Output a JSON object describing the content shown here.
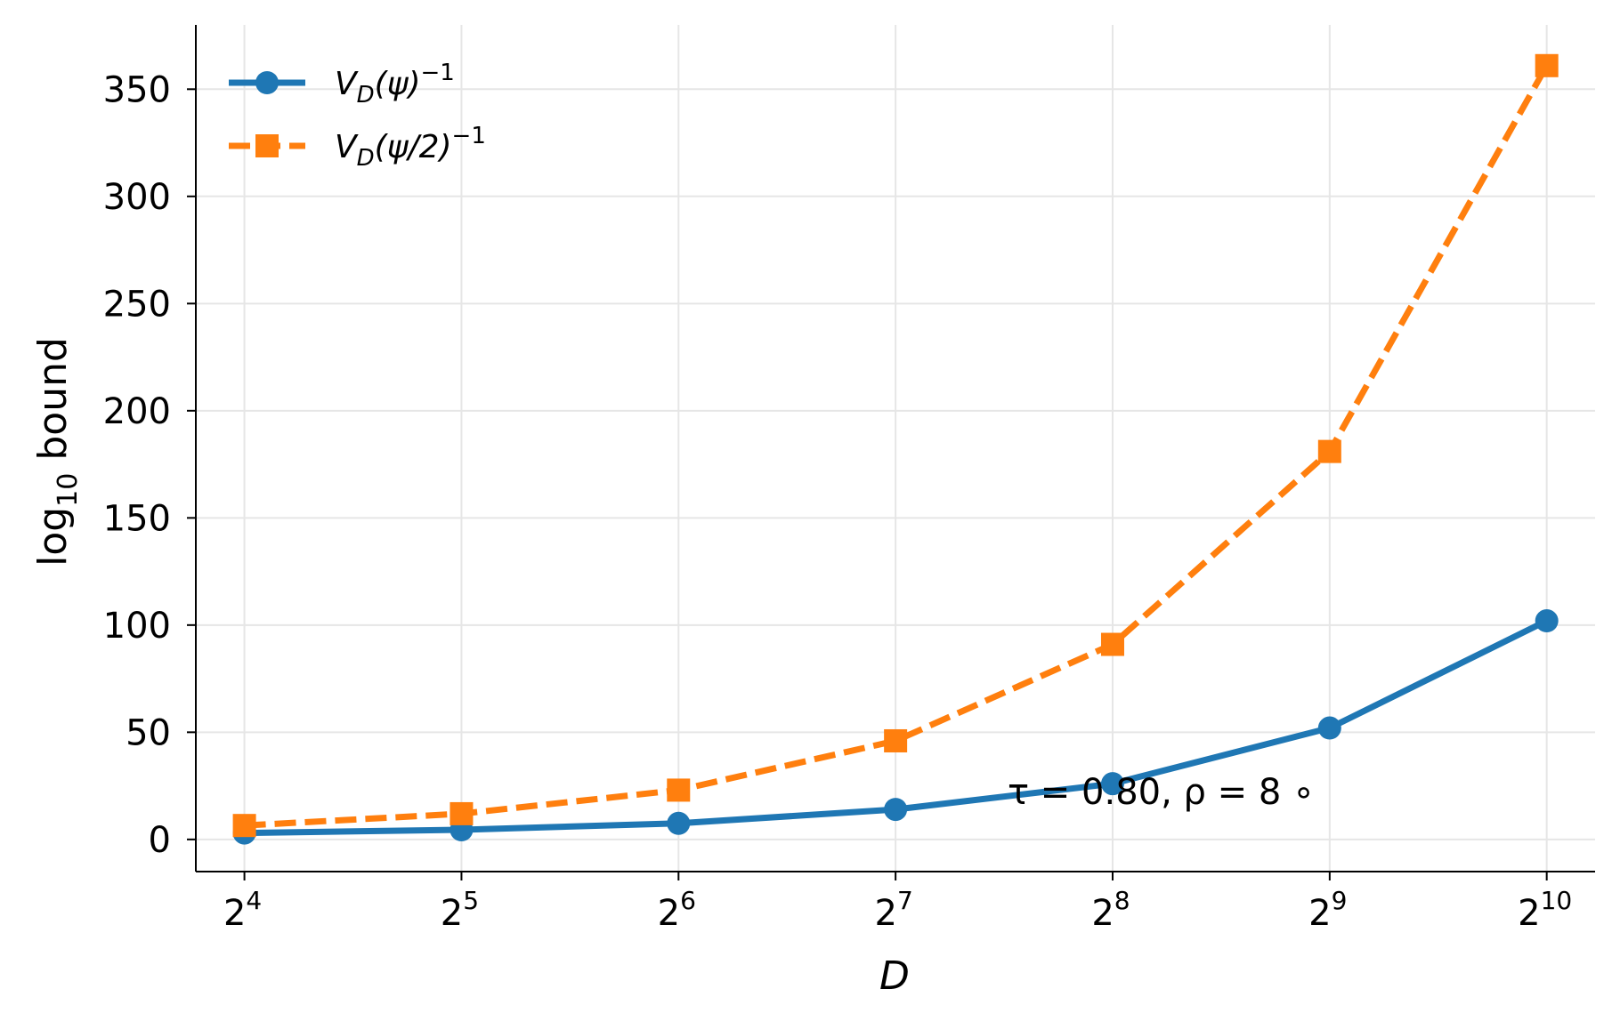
{
  "chart_data": {
    "type": "line",
    "x": [
      16,
      32,
      64,
      128,
      256,
      512,
      1024
    ],
    "x_tick_labels": [
      {
        "base": "2",
        "exp": "4"
      },
      {
        "base": "2",
        "exp": "5"
      },
      {
        "base": "2",
        "exp": "6"
      },
      {
        "base": "2",
        "exp": "7"
      },
      {
        "base": "2",
        "exp": "8"
      },
      {
        "base": "2",
        "exp": "9"
      },
      {
        "base": "2",
        "exp": "10"
      }
    ],
    "x_scale": "log2",
    "xlim": [
      13.7,
      1195
    ],
    "xlabel": "D",
    "ylabel": {
      "main": "log",
      "sub": "10",
      "rest": " bound"
    },
    "ylim": [
      -15,
      380
    ],
    "yticks": [
      0,
      50,
      100,
      150,
      200,
      250,
      300,
      350
    ],
    "grid": true,
    "legend_position": "top-left",
    "series": [
      {
        "name": {
          "v": "V",
          "sub": "D",
          "arg": "(ψ)",
          "sup": "−1"
        },
        "color": "#1f77b4",
        "linestyle": "solid",
        "marker": "circle",
        "values": [
          3,
          4.5,
          7.5,
          14,
          26,
          52,
          102
        ]
      },
      {
        "name": {
          "v": "V",
          "sub": "D",
          "arg": "(ψ/2)",
          "sup": "−1"
        },
        "color": "#ff7f0e",
        "linestyle": "dashed",
        "marker": "square",
        "values": [
          6.5,
          12,
          23,
          46,
          91,
          181,
          361
        ]
      }
    ],
    "annotation": {
      "x": 256,
      "y": 21,
      "text": "τ = 0.80,  ρ = 8 ∘"
    }
  }
}
